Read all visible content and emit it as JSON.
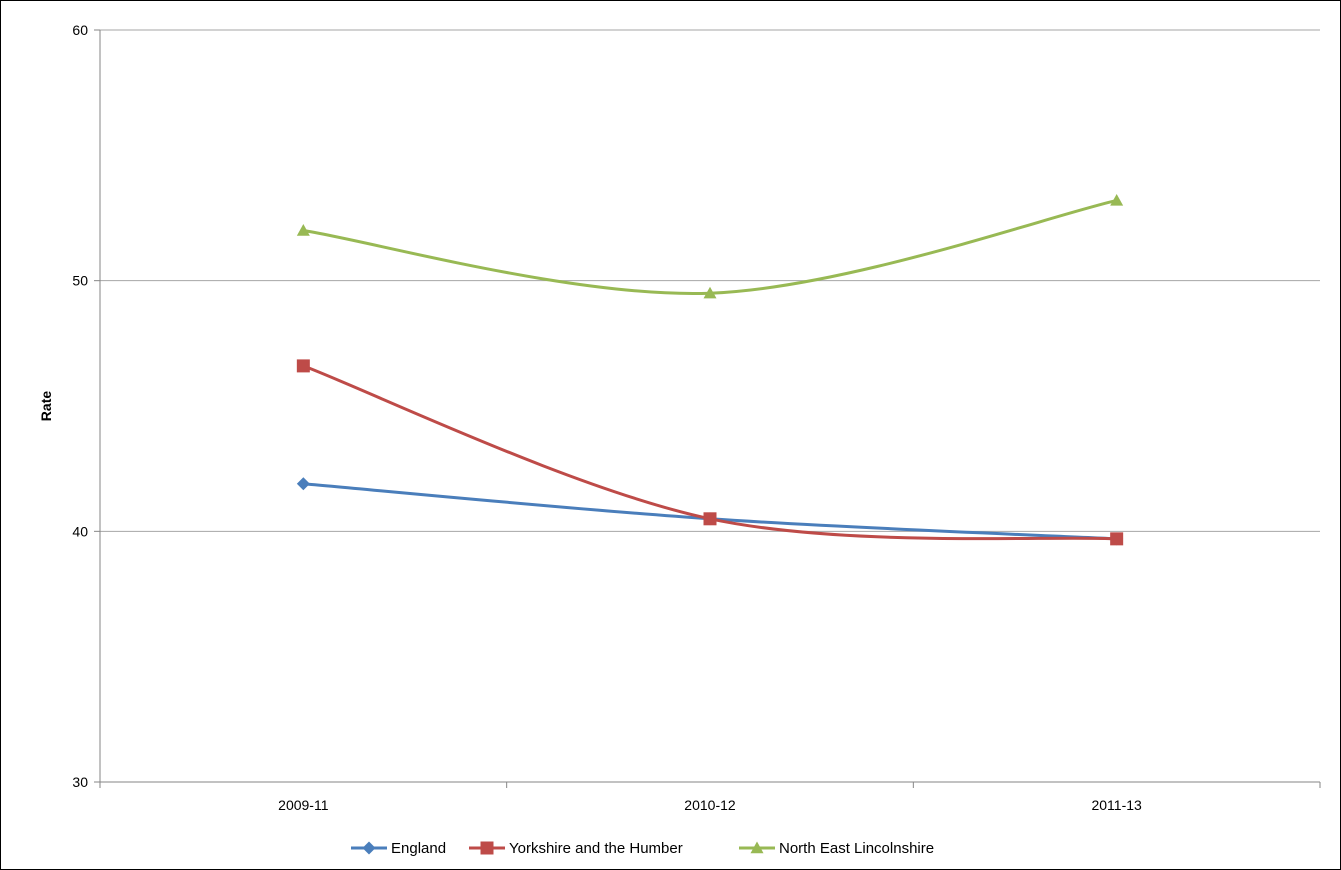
{
  "chart_data": {
    "type": "line",
    "title": "",
    "xlabel": "",
    "ylabel": "Rate",
    "categories": [
      "2009-11",
      "2010-12",
      "2011-13"
    ],
    "ylim": [
      30,
      60
    ],
    "yticks": [
      30,
      40,
      50,
      60
    ],
    "grid": true,
    "smooth": true,
    "legend_position": "bottom",
    "series": [
      {
        "name": "England",
        "values": [
          41.9,
          40.5,
          39.7
        ],
        "color": "#4a7ebb",
        "marker": "diamond"
      },
      {
        "name": "Yorkshire and the Humber",
        "values": [
          46.6,
          40.5,
          39.7
        ],
        "color": "#be4b48",
        "marker": "square"
      },
      {
        "name": "North East Lincolnshire",
        "values": [
          52.0,
          49.5,
          53.2
        ],
        "color": "#98b954",
        "marker": "triangle"
      }
    ]
  },
  "colors": {
    "gridline": "#a6a6a6",
    "axis": "#868686",
    "frame": "#000000"
  }
}
